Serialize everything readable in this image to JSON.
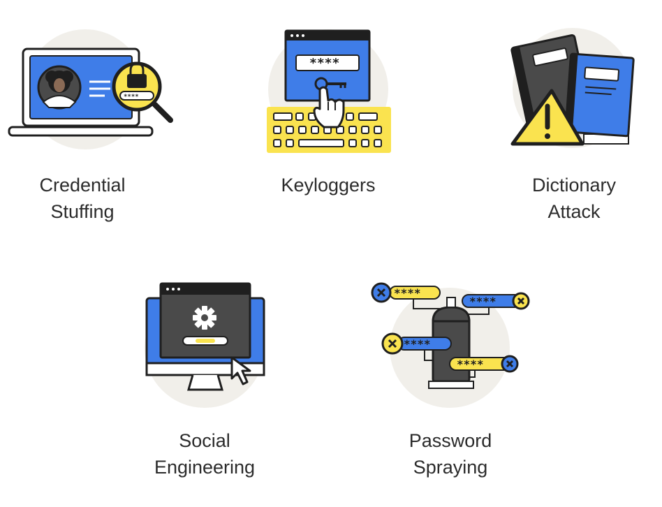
{
  "colors": {
    "blue": "#3f7de8",
    "yellow": "#fae34f",
    "dark": "#1f1f1f",
    "gray": "#4a4a4a",
    "circle": "#f1efea",
    "white": "#ffffff"
  },
  "items": [
    {
      "id": "credential-stuffing",
      "icon": "laptop-magnifier-lock-icon",
      "label_lines": [
        "Credential",
        "Stuffing"
      ],
      "badge": "****"
    },
    {
      "id": "keyloggers",
      "icon": "keyboard-key-hand-icon",
      "label_lines": [
        "Keyloggers"
      ],
      "badge": "****"
    },
    {
      "id": "dictionary-attack",
      "icon": "books-warning-icon",
      "label_lines": [
        "Dictionary",
        "Attack"
      ]
    },
    {
      "id": "social-engineering",
      "icon": "monitor-gear-cursor-icon",
      "label_lines": [
        "Social",
        "Engineering"
      ]
    },
    {
      "id": "password-spraying",
      "icon": "spray-can-passwords-icon",
      "label_lines": [
        "Password",
        "Spraying"
      ],
      "badge": "****"
    }
  ]
}
